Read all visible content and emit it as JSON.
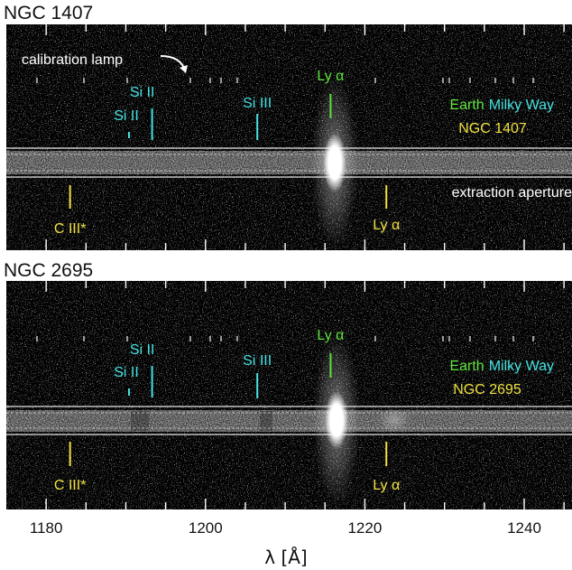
{
  "figure": {
    "xaxis": {
      "label": "λ [Å]",
      "range": [
        1175,
        1246
      ],
      "ticks": [
        1180,
        1200,
        1220,
        1240
      ],
      "tick_labels": [
        "1180",
        "1200",
        "1220",
        "1240"
      ]
    },
    "colors": {
      "milky_way": "#46e0e0",
      "earth": "#5ee23c",
      "galaxy": "#f0e040",
      "annotation": "#ffffff",
      "background": "#000000"
    },
    "panels": [
      {
        "title": "NGC 1407",
        "calibration_label": "calibration lamp",
        "aperture_label": "extraction aperture",
        "legend": {
          "earth": "Earth",
          "milky_way": "Milky Way",
          "galaxy": "NGC 1407"
        },
        "lines": [
          {
            "name": "Si II",
            "wavelength": 1190.4,
            "group": "milky_way"
          },
          {
            "name": "Si II",
            "wavelength": 1193.3,
            "group": "milky_way"
          },
          {
            "name": "Si III",
            "wavelength": 1206.5,
            "group": "milky_way"
          },
          {
            "name": "Ly α",
            "wavelength": 1215.7,
            "group": "earth"
          },
          {
            "name": "C III*",
            "wavelength": 1183.0,
            "group": "galaxy"
          },
          {
            "name": "Ly α",
            "wavelength": 1222.7,
            "group": "galaxy"
          }
        ]
      },
      {
        "title": "NGC 2695",
        "legend": {
          "earth": "Earth",
          "milky_way": "Milky Way",
          "galaxy": "NGC 2695"
        },
        "lines": [
          {
            "name": "Si II",
            "wavelength": 1190.4,
            "group": "milky_way"
          },
          {
            "name": "Si II",
            "wavelength": 1193.3,
            "group": "milky_way"
          },
          {
            "name": "Si III",
            "wavelength": 1206.5,
            "group": "milky_way"
          },
          {
            "name": "Ly α",
            "wavelength": 1215.7,
            "group": "earth"
          },
          {
            "name": "C III*",
            "wavelength": 1183.0,
            "group": "galaxy"
          },
          {
            "name": "Ly α",
            "wavelength": 1222.7,
            "group": "galaxy"
          }
        ]
      }
    ]
  }
}
